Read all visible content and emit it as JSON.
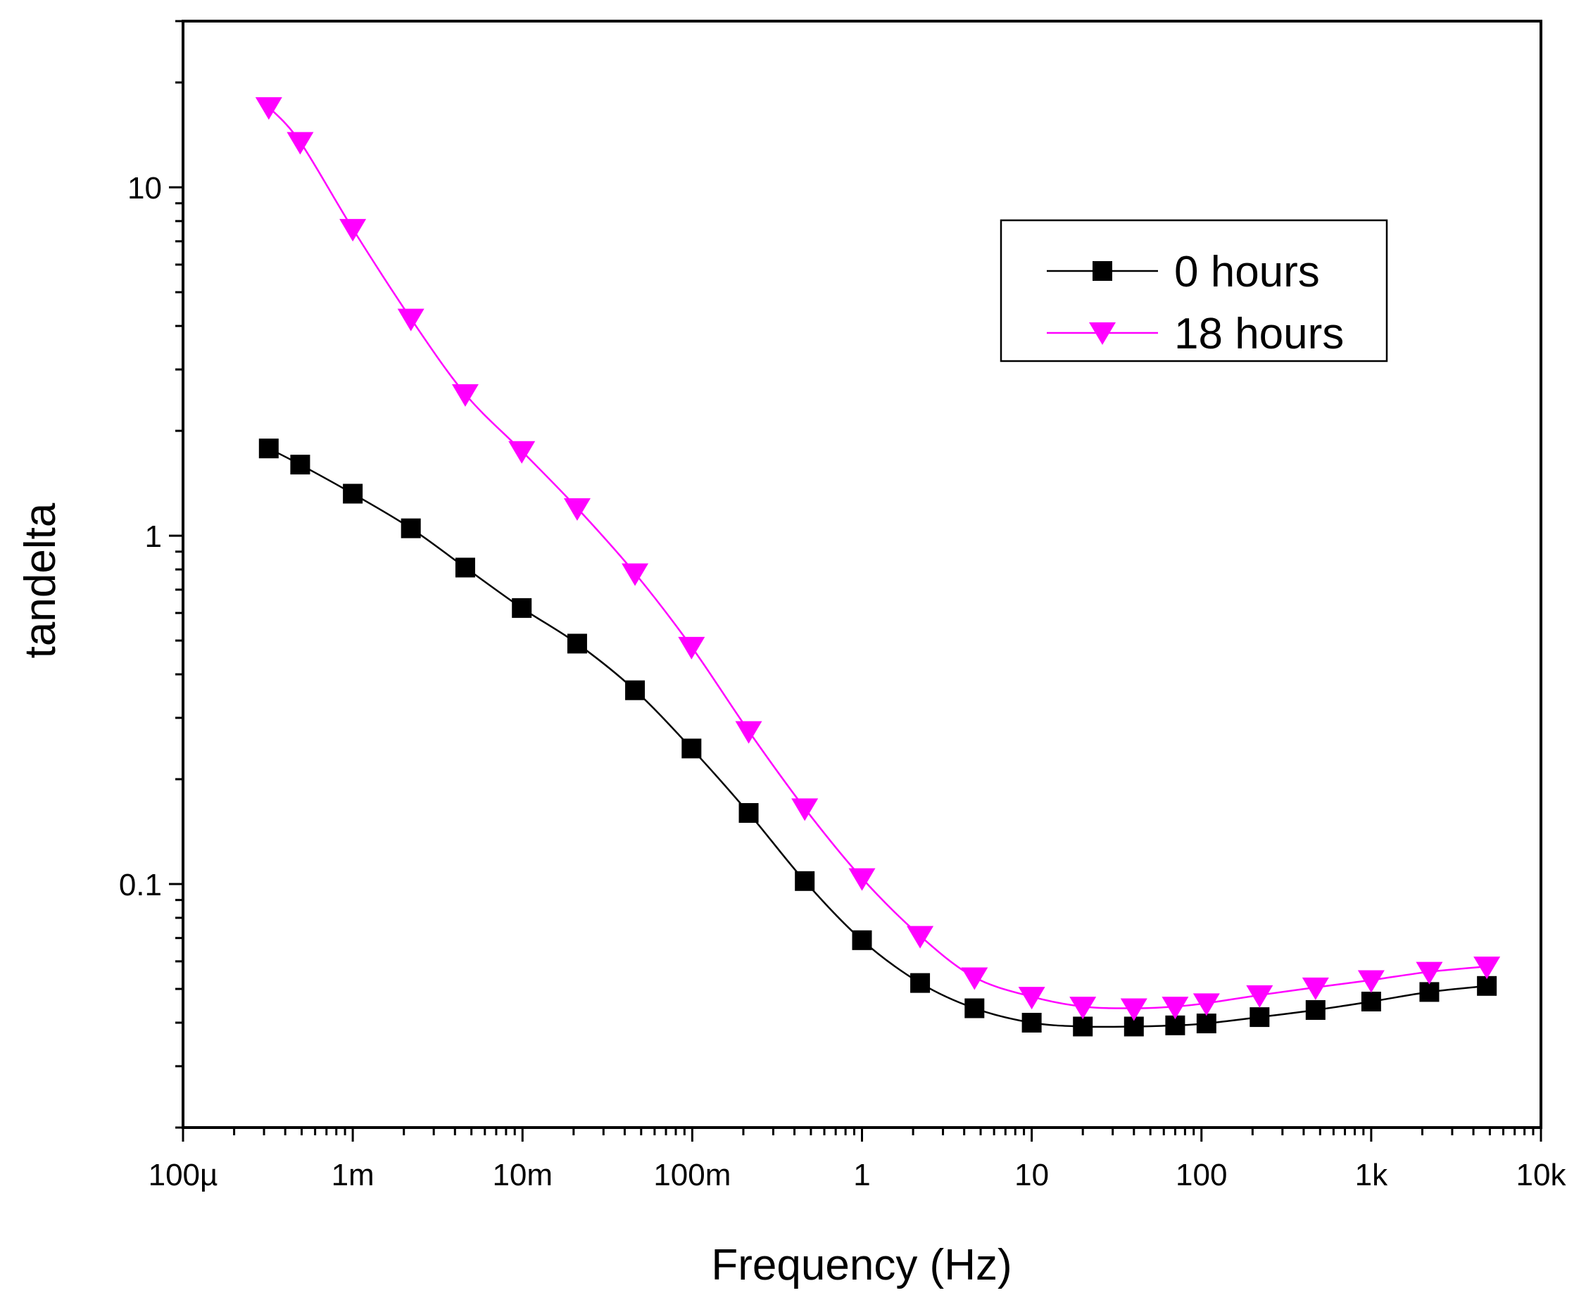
{
  "chart_data": {
    "type": "line",
    "title": "",
    "xlabel": "Frequency (Hz)",
    "ylabel": "tandelta",
    "xscale": "log",
    "yscale": "log",
    "xlim": [
      0.0001,
      10000
    ],
    "ylim": [
      0.02,
      30
    ],
    "grid": false,
    "legend_position": "top-right",
    "x_ticks": [
      {
        "value": 0.0001,
        "label": "100µ"
      },
      {
        "value": 0.001,
        "label": "1m"
      },
      {
        "value": 0.01,
        "label": "10m"
      },
      {
        "value": 0.1,
        "label": "100m"
      },
      {
        "value": 1,
        "label": "1"
      },
      {
        "value": 10,
        "label": "10"
      },
      {
        "value": 100,
        "label": "100"
      },
      {
        "value": 1000,
        "label": "1k"
      },
      {
        "value": 10000,
        "label": "10k"
      }
    ],
    "y_ticks": [
      {
        "value": 0.1,
        "label": "0.1"
      },
      {
        "value": 1,
        "label": "1"
      },
      {
        "value": 10,
        "label": "10"
      }
    ],
    "series": [
      {
        "name": "0 hours",
        "color": "#000000",
        "marker": "square",
        "x": [
          0.00032,
          0.00049,
          0.001,
          0.0022,
          0.0046,
          0.0099,
          0.021,
          0.046,
          0.099,
          0.215,
          0.46,
          1.0,
          2.2,
          4.6,
          10,
          20,
          40,
          70,
          107,
          220,
          470,
          1000,
          2200,
          4800
        ],
        "y": [
          1.78,
          1.6,
          1.32,
          1.05,
          0.81,
          0.62,
          0.49,
          0.36,
          0.245,
          0.16,
          0.102,
          0.069,
          0.052,
          0.044,
          0.04,
          0.039,
          0.039,
          0.0393,
          0.0398,
          0.0415,
          0.0435,
          0.046,
          0.049,
          0.051
        ]
      },
      {
        "name": "18 hours",
        "color": "#ff00ff",
        "marker": "triangle-down",
        "x": [
          0.00032,
          0.00049,
          0.001,
          0.0022,
          0.0046,
          0.0099,
          0.021,
          0.046,
          0.099,
          0.215,
          0.46,
          1.0,
          2.2,
          4.6,
          10,
          20,
          40,
          70,
          107,
          220,
          470,
          1000,
          2200,
          4800
        ],
        "y": [
          17.0,
          13.5,
          7.6,
          4.2,
          2.55,
          1.75,
          1.2,
          0.78,
          0.48,
          0.275,
          0.165,
          0.104,
          0.071,
          0.054,
          0.0475,
          0.0445,
          0.044,
          0.0445,
          0.0455,
          0.048,
          0.0505,
          0.053,
          0.056,
          0.058
        ]
      }
    ]
  }
}
